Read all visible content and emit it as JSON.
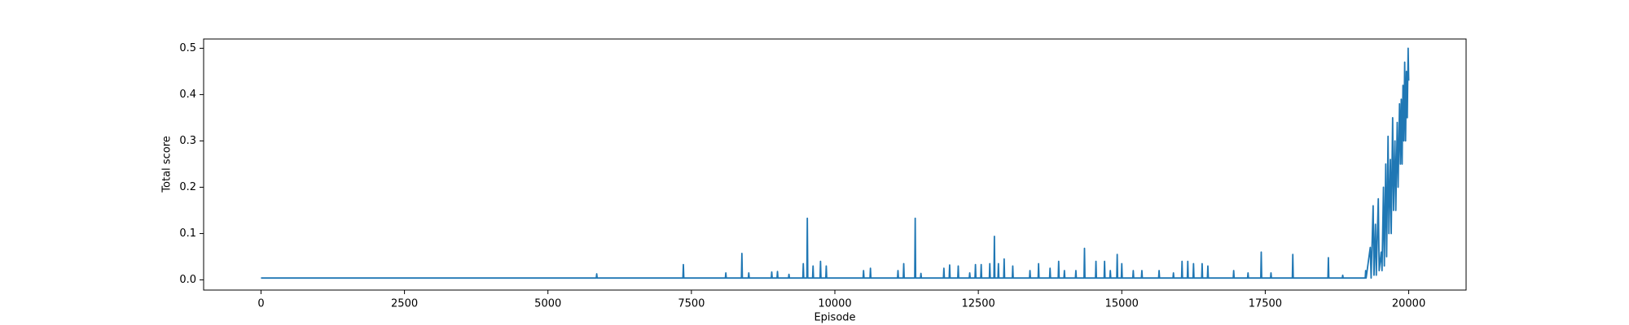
{
  "chart_data": {
    "type": "line",
    "xlabel": "Episode",
    "ylabel": "Total score",
    "color": "#1f77b4",
    "xlim": [
      -1000,
      21000
    ],
    "ylim": [
      -0.022,
      0.52
    ],
    "xticks": [
      0,
      2500,
      5000,
      7500,
      10000,
      12500,
      15000,
      17500,
      20000
    ],
    "yticks": [
      {
        "value": 0,
        "label": "0.0"
      },
      0.1,
      0.2,
      0.3,
      0.4,
      0.5
    ],
    "x": [
      0,
      5842,
      5850,
      5858,
      7352,
      7360,
      7368,
      8092,
      8100,
      8108,
      8372,
      8380,
      8388,
      8492,
      8500,
      8508,
      8892,
      8900,
      8908,
      8992,
      9000,
      9008,
      9192,
      9200,
      9208,
      9442,
      9450,
      9458,
      9512,
      9520,
      9528,
      9612,
      9620,
      9628,
      9742,
      9750,
      9758,
      9842,
      9850,
      9858,
      10492,
      10500,
      10508,
      10612,
      10620,
      10628,
      11092,
      11100,
      11108,
      11192,
      11200,
      11208,
      11392,
      11400,
      11408,
      11492,
      11500,
      11508,
      11892,
      11900,
      11908,
      11992,
      12000,
      12008,
      12142,
      12150,
      12158,
      12342,
      12350,
      12358,
      12442,
      12450,
      12458,
      12542,
      12550,
      12558,
      12692,
      12700,
      12708,
      12772,
      12780,
      12788,
      12842,
      12850,
      12858,
      12942,
      12950,
      12958,
      13092,
      13100,
      13108,
      13392,
      13400,
      13408,
      13542,
      13550,
      13558,
      13742,
      13750,
      13758,
      13892,
      13900,
      13908,
      13992,
      14000,
      14008,
      14192,
      14200,
      14208,
      14342,
      14350,
      14358,
      14542,
      14550,
      14558,
      14692,
      14700,
      14708,
      14792,
      14800,
      14808,
      14912,
      14920,
      14928,
      14992,
      15000,
      15008,
      15192,
      15200,
      15208,
      15342,
      15350,
      15358,
      15642,
      15650,
      15658,
      15892,
      15900,
      15908,
      16042,
      16050,
      16058,
      16142,
      16150,
      16158,
      16242,
      16250,
      16258,
      16392,
      16400,
      16408,
      16492,
      16500,
      16508,
      16942,
      16950,
      16958,
      17192,
      17200,
      17208,
      17422,
      17430,
      17438,
      17592,
      17600,
      17608,
      17972,
      17980,
      17988,
      18592,
      18600,
      18608,
      18842,
      18850,
      18858,
      19242,
      19250,
      19258,
      19330,
      19345,
      19380,
      19395,
      19420,
      19435,
      19470,
      19485,
      19520,
      19535,
      19560,
      19575,
      19600,
      19615,
      19640,
      19655,
      19680,
      19695,
      19720,
      19735,
      19760,
      19775,
      19800,
      19815,
      19840,
      19855,
      19870,
      19885,
      19900,
      19915,
      19930,
      19945,
      19960,
      19975,
      19990,
      20000
    ],
    "values": [
      0.004,
      0.004,
      0.013,
      0.004,
      0.004,
      0.033,
      0.004,
      0.004,
      0.015,
      0.004,
      0.004,
      0.057,
      0.004,
      0.004,
      0.015,
      0.004,
      0.004,
      0.017,
      0.004,
      0.004,
      0.018,
      0.004,
      0.004,
      0.012,
      0.004,
      0.004,
      0.035,
      0.004,
      0.004,
      0.133,
      0.004,
      0.004,
      0.03,
      0.004,
      0.004,
      0.04,
      0.004,
      0.004,
      0.03,
      0.004,
      0.004,
      0.02,
      0.004,
      0.004,
      0.025,
      0.004,
      0.004,
      0.02,
      0.004,
      0.004,
      0.035,
      0.004,
      0.004,
      0.133,
      0.004,
      0.004,
      0.014,
      0.004,
      0.004,
      0.025,
      0.004,
      0.004,
      0.032,
      0.004,
      0.004,
      0.03,
      0.004,
      0.004,
      0.015,
      0.004,
      0.004,
      0.033,
      0.004,
      0.004,
      0.033,
      0.004,
      0.004,
      0.035,
      0.004,
      0.004,
      0.094,
      0.004,
      0.004,
      0.035,
      0.004,
      0.004,
      0.045,
      0.004,
      0.004,
      0.03,
      0.004,
      0.004,
      0.02,
      0.004,
      0.004,
      0.035,
      0.004,
      0.004,
      0.025,
      0.004,
      0.004,
      0.04,
      0.004,
      0.004,
      0.02,
      0.004,
      0.004,
      0.02,
      0.004,
      0.004,
      0.068,
      0.004,
      0.004,
      0.04,
      0.004,
      0.004,
      0.04,
      0.004,
      0.004,
      0.02,
      0.004,
      0.004,
      0.055,
      0.004,
      0.004,
      0.035,
      0.004,
      0.004,
      0.02,
      0.004,
      0.004,
      0.02,
      0.004,
      0.004,
      0.02,
      0.004,
      0.004,
      0.015,
      0.004,
      0.004,
      0.04,
      0.004,
      0.004,
      0.04,
      0.004,
      0.004,
      0.035,
      0.004,
      0.004,
      0.035,
      0.004,
      0.004,
      0.03,
      0.004,
      0.004,
      0.02,
      0.004,
      0.004,
      0.015,
      0.004,
      0.004,
      0.06,
      0.004,
      0.004,
      0.015,
      0.004,
      0.004,
      0.055,
      0.004,
      0.004,
      0.048,
      0.004,
      0.004,
      0.01,
      0.004,
      0.004,
      0.02,
      0.004,
      0.07,
      0.004,
      0.16,
      0.01,
      0.12,
      0.01,
      0.175,
      0.02,
      0.06,
      0.02,
      0.2,
      0.03,
      0.25,
      0.05,
      0.31,
      0.1,
      0.26,
      0.1,
      0.35,
      0.15,
      0.3,
      0.15,
      0.34,
      0.2,
      0.38,
      0.25,
      0.39,
      0.25,
      0.42,
      0.3,
      0.47,
      0.3,
      0.45,
      0.35,
      0.5,
      0.43
    ]
  }
}
